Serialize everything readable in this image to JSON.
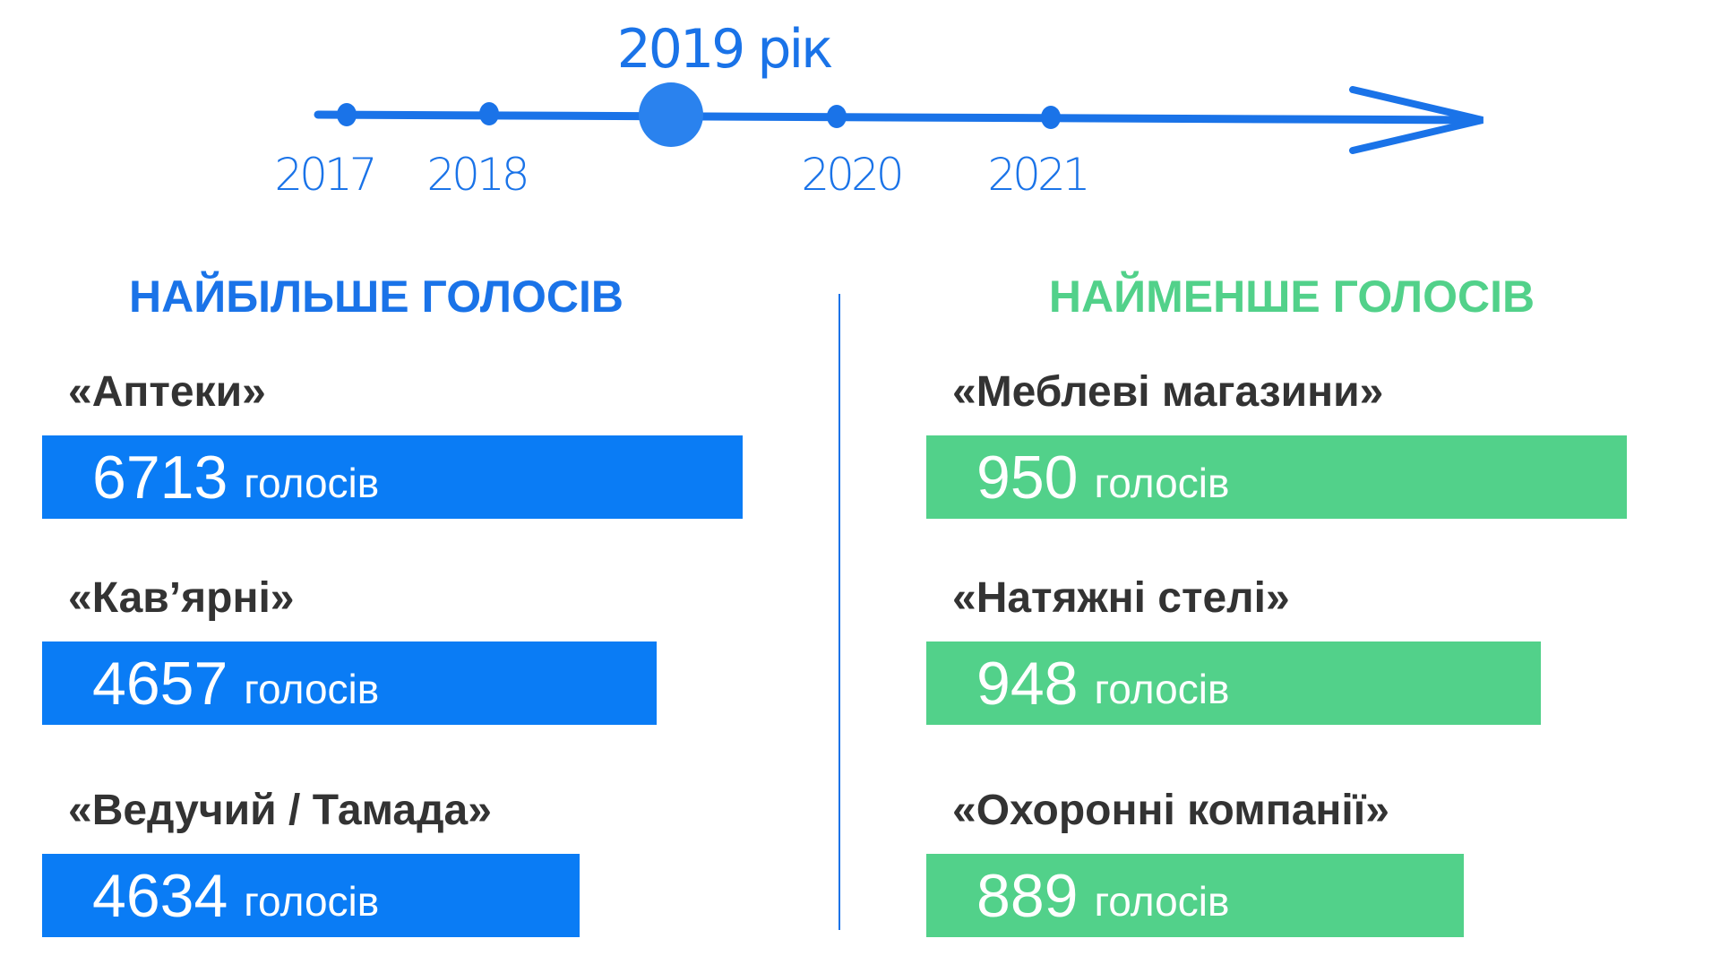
{
  "colors": {
    "blue": "#0a7cf5",
    "green": "#52d18a",
    "text": "#333333"
  },
  "timeline": {
    "current": "2019 рік",
    "years": [
      "2017",
      "2018",
      "2020",
      "2021"
    ]
  },
  "most": {
    "heading": "НАЙБІЛЬШЕ ГОЛОСІВ",
    "items": [
      {
        "label": "«Аптеки»",
        "value": "6713",
        "unit": "голосів",
        "votes": 6713
      },
      {
        "label": "«Кав’ярні»",
        "value": "4657",
        "unit": "голосів",
        "votes": 4657
      },
      {
        "label": "«Ведучий / Тамада»",
        "value": "4634",
        "unit": "голосів",
        "votes": 4634
      }
    ]
  },
  "least": {
    "heading": "НАЙМЕНШЕ ГОЛОСІВ",
    "items": [
      {
        "label": "«Меблеві магазини»",
        "value": "950",
        "unit": "голосів",
        "votes": 950
      },
      {
        "label": "«Натяжні стелі»",
        "value": "948",
        "unit": "голосів",
        "votes": 948
      },
      {
        "label": "«Охоронні компанії»",
        "value": "889",
        "unit": "голосів",
        "votes": 889
      }
    ]
  }
}
